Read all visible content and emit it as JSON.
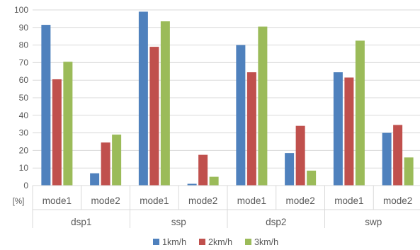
{
  "chart_data": {
    "type": "bar",
    "unit_label": "[%]",
    "groups": [
      {
        "label": "dsp1",
        "categories": [
          "mode1",
          "mode2"
        ]
      },
      {
        "label": "ssp",
        "categories": [
          "mode1",
          "mode2"
        ]
      },
      {
        "label": "dsp2",
        "categories": [
          "mode1",
          "mode2"
        ]
      },
      {
        "label": "swp",
        "categories": [
          "mode1",
          "mode2"
        ]
      }
    ],
    "categories": [
      "mode1",
      "mode2",
      "mode1",
      "mode2",
      "mode1",
      "mode2",
      "mode1",
      "mode2"
    ],
    "series": [
      {
        "name": "1km/h",
        "color": "#4f81bd",
        "values": [
          91.5,
          7,
          99,
          1,
          80,
          18.5,
          64.5,
          30
        ]
      },
      {
        "name": "2km/h",
        "color": "#c0504d",
        "values": [
          60.5,
          24.5,
          79,
          17.5,
          64.5,
          34,
          61.5,
          34.5
        ]
      },
      {
        "name": "3km/h",
        "color": "#9bbb59",
        "values": [
          70.5,
          29,
          93.5,
          5,
          90.5,
          8.5,
          82.5,
          16
        ]
      }
    ],
    "ylim": [
      0,
      100
    ],
    "yticks": [
      "0",
      "10",
      "20",
      "30",
      "40",
      "50",
      "60",
      "70",
      "80",
      "90",
      "100"
    ],
    "grid": true,
    "legend": "bottom",
    "title": "",
    "xlabel": "",
    "ylabel": ""
  }
}
